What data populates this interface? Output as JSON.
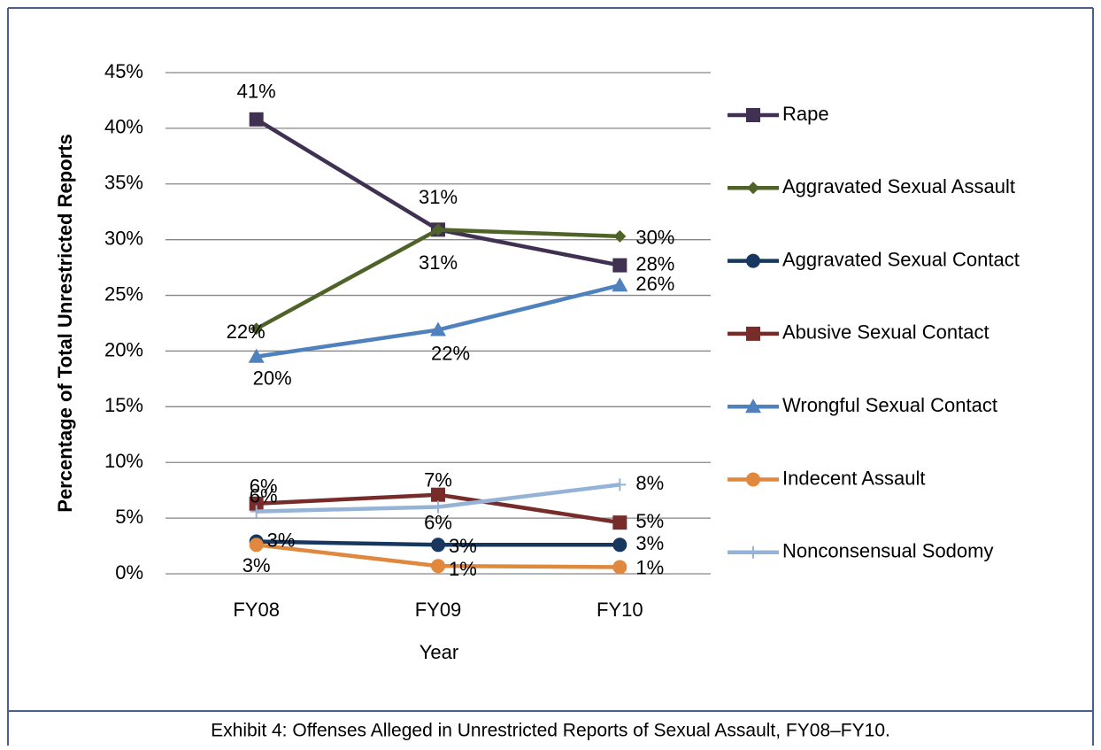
{
  "chart_data": {
    "type": "line",
    "caption": "Exhibit 4: Offenses Alleged in Unrestricted Reports of Sexual Assault, FY08–FY10.",
    "x_label": "Year",
    "y_label": "Percentage of Total Unrestricted Reports",
    "categories": [
      "FY08",
      "FY09",
      "FY10"
    ],
    "ylim": [
      0,
      45
    ],
    "yticks": [
      {
        "value": 0,
        "label": "0%"
      },
      {
        "value": 5,
        "label": "5%"
      },
      {
        "value": 10,
        "label": "10%"
      },
      {
        "value": 15,
        "label": "15%"
      },
      {
        "value": 20,
        "label": "20%"
      },
      {
        "value": 25,
        "label": "25%"
      },
      {
        "value": 30,
        "label": "30%"
      },
      {
        "value": 35,
        "label": "35%"
      },
      {
        "value": 40,
        "label": "40%"
      },
      {
        "value": 45,
        "label": "45%"
      }
    ],
    "grid": true,
    "legend": "right",
    "series": [
      {
        "name": "Rape",
        "color": "#403152",
        "marker": "square",
        "values": [
          40.8,
          30.9,
          27.7
        ],
        "value_labels": [
          "41%",
          "31%",
          "28%"
        ]
      },
      {
        "name": "Aggravated Sexual Assault",
        "color": "#4f6228",
        "marker": "diamond",
        "values": [
          22.0,
          30.9,
          30.3
        ],
        "value_labels": [
          "22%",
          "31%",
          "30%"
        ]
      },
      {
        "name": "Aggravated Sexual Contact",
        "color": "#17375e",
        "marker": "circle",
        "values": [
          2.9,
          2.6,
          2.6
        ],
        "value_labels": [
          "3%",
          "3%",
          "3%"
        ]
      },
      {
        "name": "Abusive Sexual Contact",
        "color": "#772c2a",
        "marker": "square",
        "values": [
          6.3,
          7.1,
          4.6
        ],
        "value_labels": [
          "6%",
          "7%",
          "5%"
        ]
      },
      {
        "name": "Wrongful Sexual Contact",
        "color": "#4f81bd",
        "marker": "triangle",
        "values": [
          19.5,
          21.9,
          25.9
        ],
        "value_labels": [
          "20%",
          "22%",
          "26%"
        ]
      },
      {
        "name": "Indecent Assault",
        "color": "#e0883e",
        "marker": "circle",
        "values": [
          2.6,
          0.7,
          0.6
        ],
        "value_labels": [
          "3%",
          "1%",
          "1%"
        ]
      },
      {
        "name": "Nonconsensual Sodomy",
        "color": "#95b3d7",
        "marker": "plus",
        "values": [
          5.6,
          6.0,
          8.0
        ],
        "value_labels": [
          "6%",
          "6%",
          "8%"
        ]
      }
    ]
  }
}
